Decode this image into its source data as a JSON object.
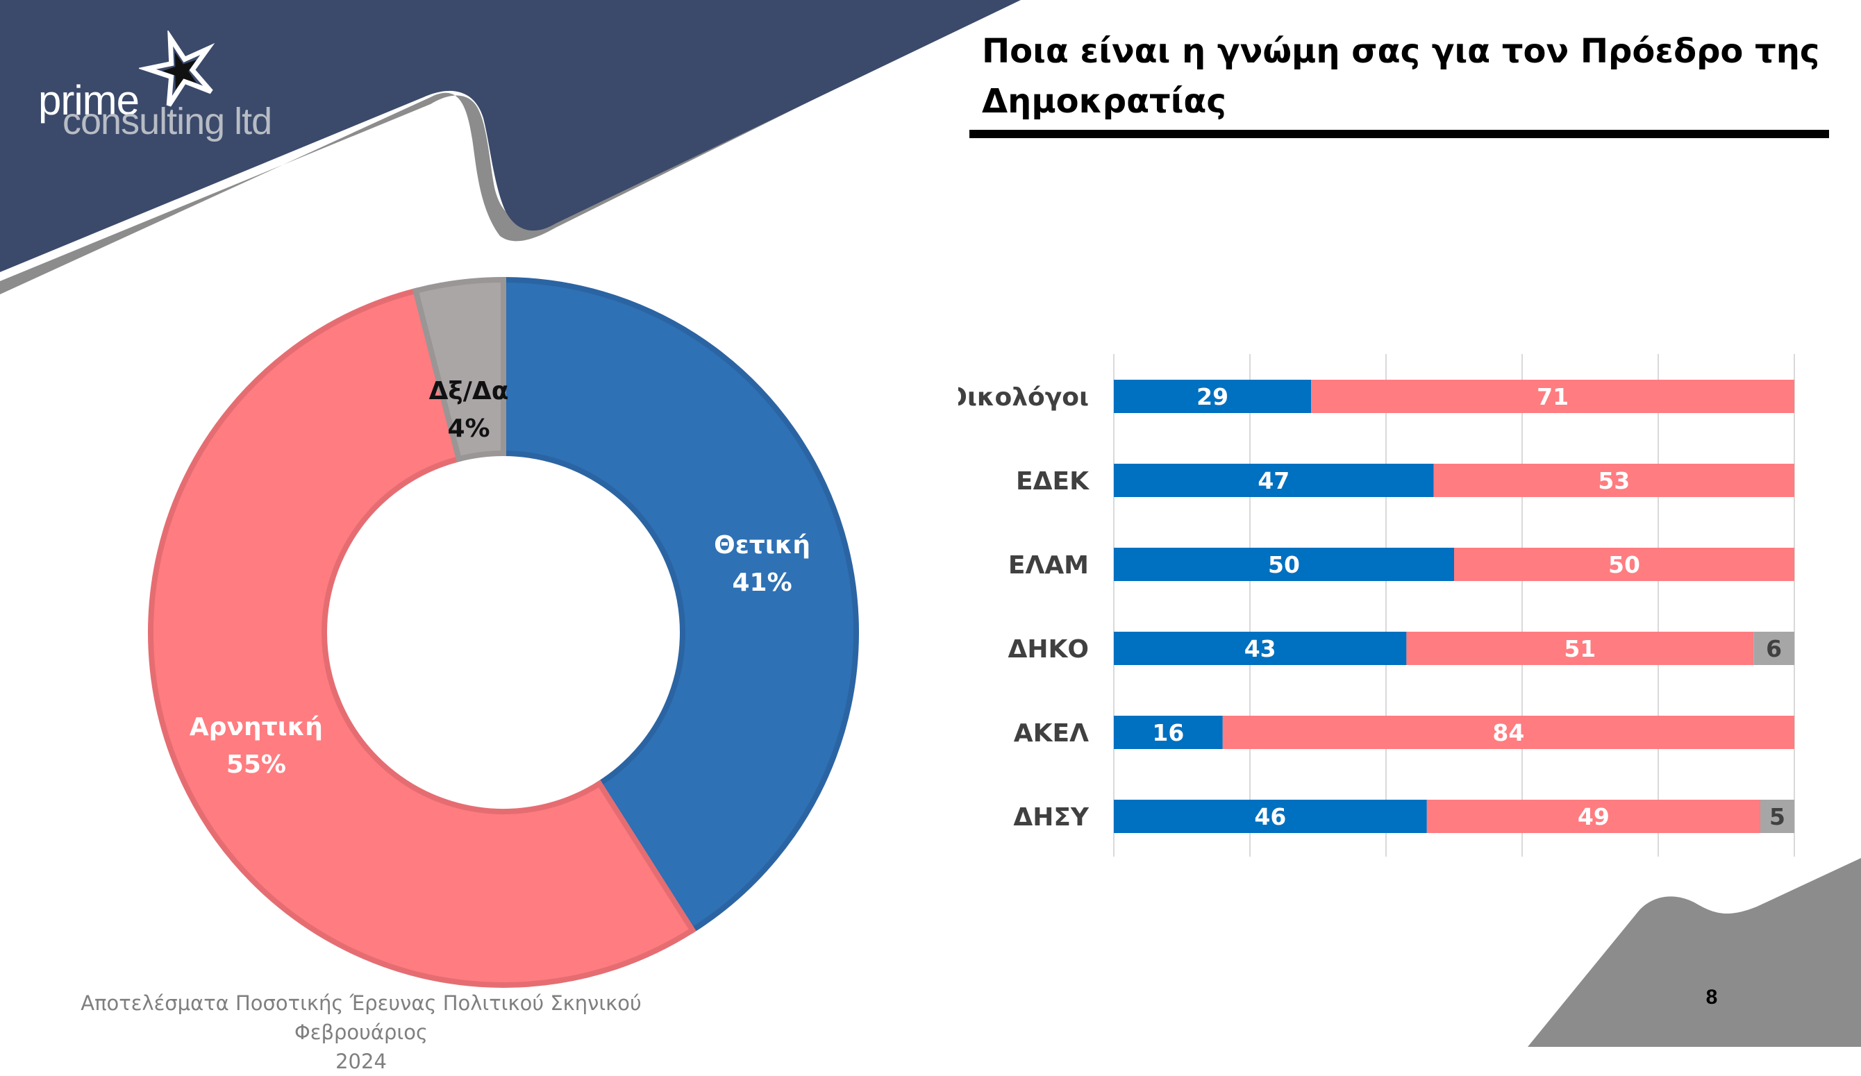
{
  "header": {
    "logo_text_1": "prime",
    "logo_text_2": "consulting ltd",
    "title_line1": "Ποια είναι η γνώμη σας για τον Πρόεδρο της",
    "title_line2": "Δημοκρατίας"
  },
  "footer": {
    "line1": "Αποτελέσματα Ποσοτικής Έρευνας Πολιτικού Σκηνικού Φεβρουάριος",
    "line2": "2024",
    "page_number": "8"
  },
  "colors": {
    "navy": "#3b4a6b",
    "gray_band": "#8c8c8c",
    "positive": "#2e71b5",
    "negative": "#ff7c80",
    "dk": "#aaa6a6",
    "bar_positive": "#0070c0",
    "bar_negative": "#ff7c80",
    "bar_dk": "#a6a6a6"
  },
  "chart_data": [
    {
      "type": "pie",
      "variant": "donut",
      "slices": [
        {
          "label": "Θετική",
          "value": 41,
          "value_label": "41%",
          "color": "#2e71b5"
        },
        {
          "label": "Αρνητική",
          "value": 55,
          "value_label": "55%",
          "color": "#ff7c80"
        },
        {
          "label": "Δξ/Δα",
          "value": 4,
          "value_label": "4%",
          "color": "#aaa6a6"
        }
      ]
    },
    {
      "type": "bar",
      "orientation": "horizontal",
      "stacked": true,
      "xlim": [
        0,
        100
      ],
      "grid": true,
      "categories": [
        "Οικολόγοι",
        "ΕΔΕΚ",
        "ΕΛΑΜ",
        "ΔΗΚΟ",
        "ΑΚΕΛ",
        "ΔΗΣΥ"
      ],
      "series": [
        {
          "key": "positive",
          "values": [
            29,
            47,
            50,
            43,
            16,
            46
          ],
          "color": "#0070c0"
        },
        {
          "key": "negative",
          "values": [
            71,
            53,
            50,
            51,
            84,
            49
          ],
          "color": "#ff7c80"
        },
        {
          "key": "dk",
          "values": [
            0,
            0,
            0,
            6,
            0,
            5
          ],
          "color": "#a6a6a6"
        }
      ]
    }
  ]
}
